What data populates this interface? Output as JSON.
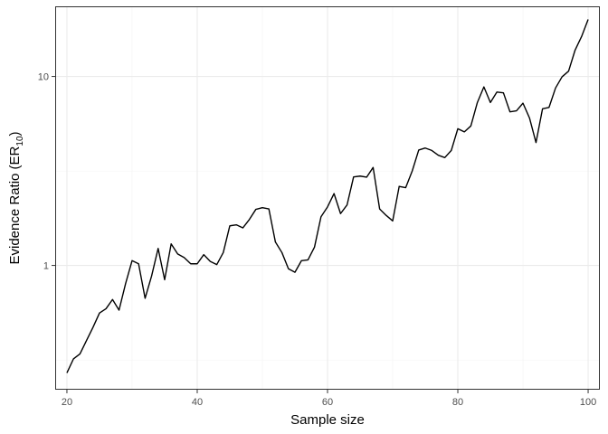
{
  "chart_data": {
    "type": "line",
    "xlabel": "Sample size",
    "ylabel_main": "Evidence Ratio (ER",
    "ylabel_sub": "10",
    "ylabel_close": ")",
    "xlim": [
      18.2,
      101.8
    ],
    "ylim": [
      0.22,
      23.5
    ],
    "y_scale": "log",
    "grid": true,
    "x_ticks": [
      20,
      40,
      60,
      80,
      100
    ],
    "x_tick_labels": [
      "20",
      "40",
      "60",
      "80",
      "100"
    ],
    "y_ticks": [
      1,
      10
    ],
    "y_tick_labels": [
      "1",
      "10"
    ],
    "y_minor_grid": [
      0.316,
      3.16
    ],
    "line_color": "#000000",
    "series": [
      {
        "x": [
          20,
          21,
          22,
          23,
          24,
          25,
          26,
          27,
          28,
          29,
          30,
          31,
          32,
          33,
          34,
          35,
          36,
          37,
          38,
          39,
          40,
          41,
          42,
          43,
          44,
          45,
          46,
          47,
          48,
          49,
          50,
          51,
          52,
          53,
          54,
          55,
          56,
          57,
          58,
          59,
          60,
          61,
          62,
          63,
          64,
          65,
          66,
          67,
          68,
          69,
          70,
          71,
          72,
          73,
          74,
          75,
          76,
          77,
          78,
          79,
          80,
          81,
          82,
          83,
          84,
          85,
          86,
          87,
          88,
          89,
          90,
          91,
          92,
          93,
          94,
          95,
          96,
          97,
          98,
          99,
          100
        ],
        "y": [
          0.27,
          0.32,
          0.34,
          0.4,
          0.47,
          0.56,
          0.59,
          0.66,
          0.58,
          0.8,
          1.06,
          1.02,
          0.67,
          0.88,
          1.23,
          0.84,
          1.3,
          1.15,
          1.1,
          1.02,
          1.02,
          1.14,
          1.05,
          1.01,
          1.17,
          1.62,
          1.64,
          1.58,
          1.75,
          1.98,
          2.02,
          1.99,
          1.33,
          1.17,
          0.96,
          0.92,
          1.06,
          1.07,
          1.25,
          1.81,
          2.04,
          2.4,
          1.88,
          2.09,
          2.94,
          2.97,
          2.93,
          3.3,
          1.99,
          1.84,
          1.72,
          2.62,
          2.58,
          3.16,
          4.08,
          4.18,
          4.06,
          3.83,
          3.72,
          4.06,
          5.29,
          5.09,
          5.47,
          7.28,
          8.8,
          7.28,
          8.27,
          8.19,
          6.5,
          6.58,
          7.22,
          6.03,
          4.47,
          6.74,
          6.86,
          8.69,
          9.96,
          10.67,
          13.79,
          16.28,
          20.02
        ]
      }
    ]
  }
}
